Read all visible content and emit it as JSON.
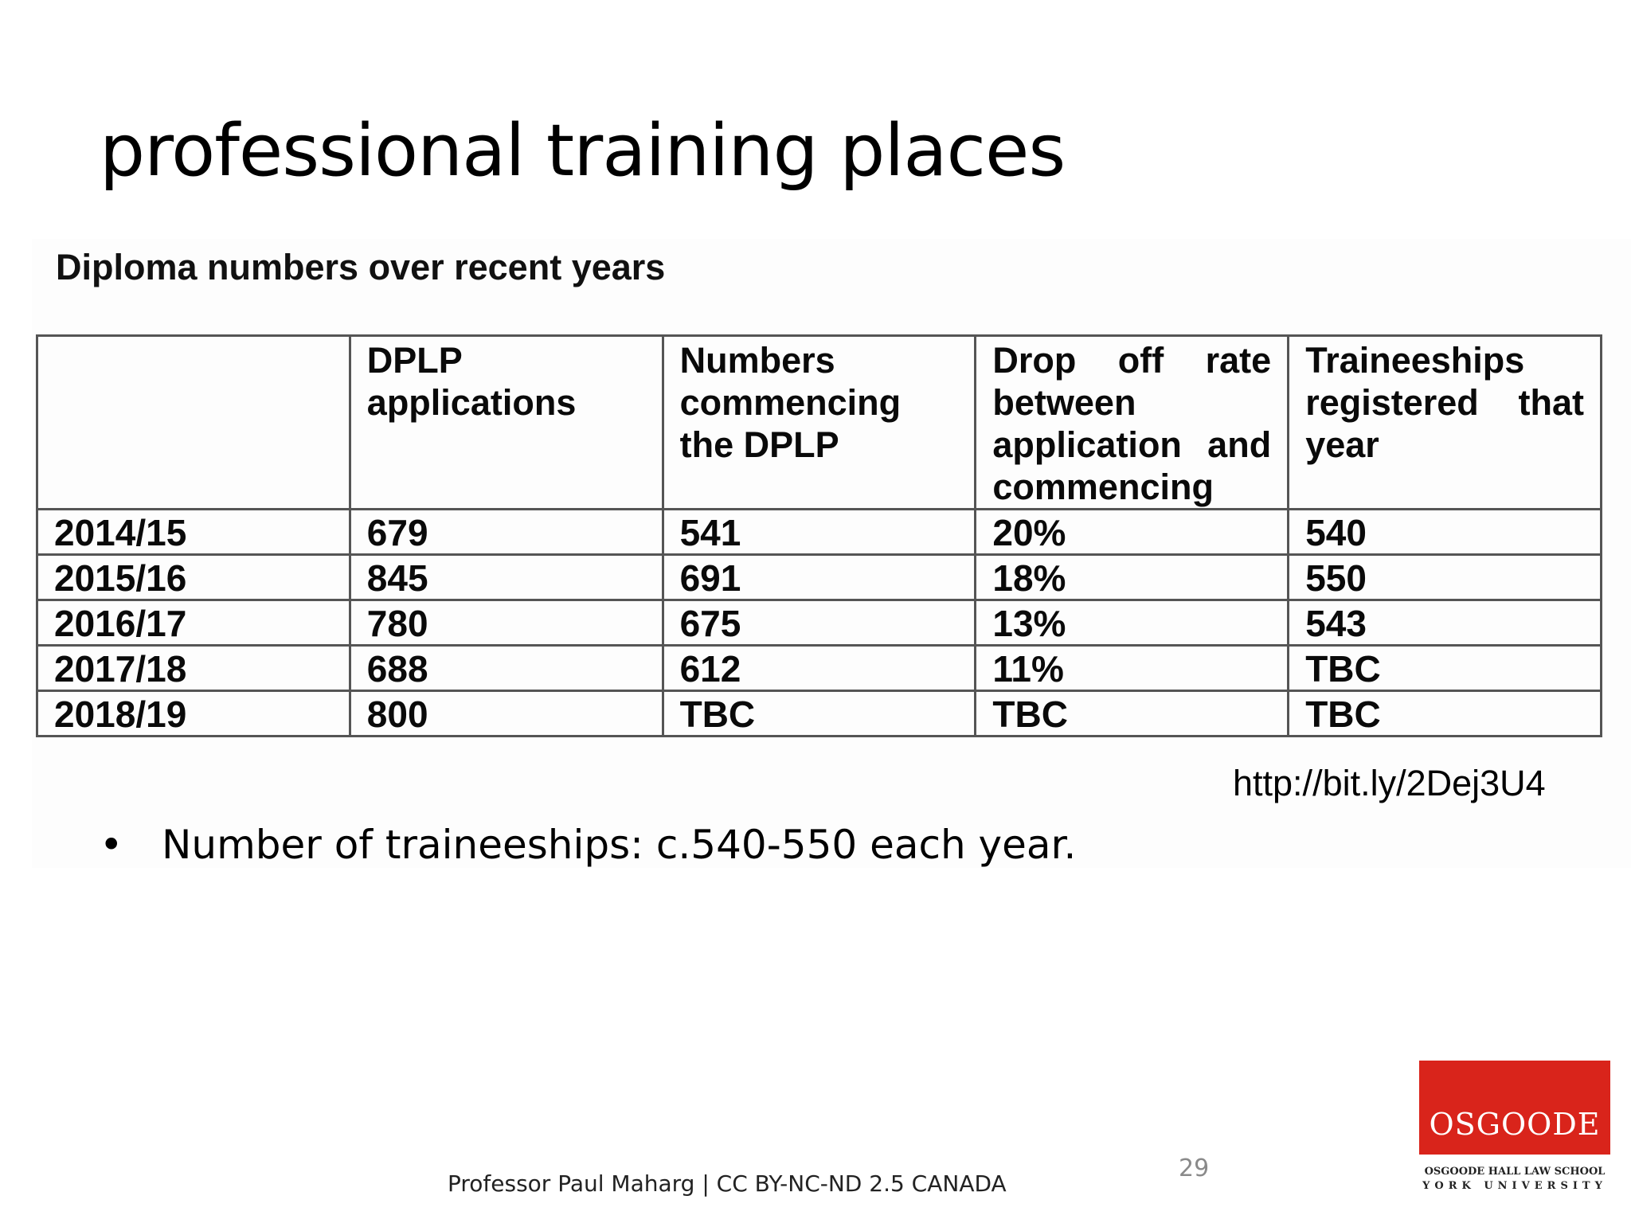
{
  "slide": {
    "title": "professional training places",
    "bullet": "Number of traineeships: c.540-550 each year.",
    "bullet_marker": "•",
    "source_url": "http://bit.ly/2Dej3U4",
    "footer": "Professor Paul Maharg | CC BY-NC-ND 2.5 CANADA",
    "page_number": "29"
  },
  "table": {
    "caption": "Diploma numbers over recent years",
    "headers": [
      "",
      "DPLP applications",
      "Numbers commencing the DPLP",
      "Drop off rate between application and commencing",
      "Traineeships registered that year"
    ],
    "rows": [
      [
        "2014/15",
        "679",
        "541",
        "20%",
        "540"
      ],
      [
        "2015/16",
        "845",
        "691",
        "18%",
        "550"
      ],
      [
        "2016/17",
        "780",
        "675",
        "13%",
        "543"
      ],
      [
        "2017/18",
        "688",
        "612",
        "11%",
        "TBC"
      ],
      [
        "2018/19",
        "800",
        "TBC",
        "TBC",
        "TBC"
      ]
    ]
  },
  "logo": {
    "name": "OSGOODE",
    "line1": "OSGOODE HALL LAW SCHOOL",
    "line2": "YORK UNIVERSITY",
    "colors": {
      "red": "#d9241b",
      "white": "#ffffff"
    }
  }
}
